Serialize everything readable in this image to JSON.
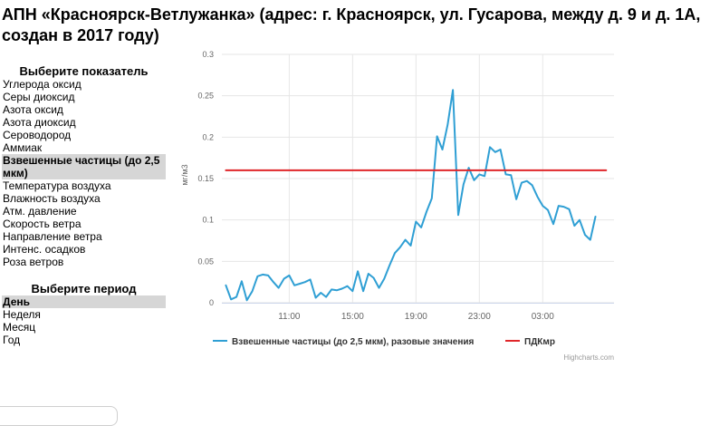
{
  "page": {
    "title": "АПН «Красноярск-Ветлужанка» (адрес: г. Красноярск, ул. Гусарова, между д. 9 и д. 1А, создан в 2017 году)"
  },
  "indicator_panel": {
    "heading": "Выберите показатель",
    "items": [
      "Углерода оксид",
      "Серы диоксид",
      "Азота оксид",
      "Азота диоксид",
      "Сероводород",
      "Аммиак",
      "Взвешенные частицы (до 2,5 мкм)",
      "Температура воздуха",
      "Влажность воздуха",
      "Атм. давление",
      "Скорость ветра",
      "Направление ветра",
      "Интенс. осадков",
      "Роза ветров"
    ],
    "selected_index": 6
  },
  "period_panel": {
    "heading": "Выберите период",
    "items": [
      "День",
      "Неделя",
      "Месяц",
      "Год"
    ],
    "selected_index": 0
  },
  "chart_data": {
    "type": "line",
    "ylabel": "мг/м3",
    "ylim": [
      0,
      0.3
    ],
    "yticks": [
      0,
      0.05,
      0.1,
      0.15,
      0.2,
      0.25,
      0.3
    ],
    "ytick_labels": [
      "0",
      "0.05",
      "0.1",
      "0.15",
      "0.2",
      "0.25",
      "0.3"
    ],
    "xlim": [
      6.75,
      31.5
    ],
    "xticks": [
      11,
      15,
      19,
      23,
      27
    ],
    "xtick_labels": [
      "11:00",
      "15:00",
      "19:00",
      "23:00",
      "03:00"
    ],
    "grid": true,
    "legend": "bottom",
    "series": [
      {
        "name": "Взвешенные частицы (до 2,5 мкм), разовые значения",
        "color": "#2f9fd4",
        "x": [
          7.0,
          7.33,
          7.67,
          8.0,
          8.33,
          8.67,
          9.0,
          9.33,
          9.67,
          10.0,
          10.33,
          10.67,
          11.0,
          11.33,
          11.67,
          12.0,
          12.33,
          12.67,
          13.0,
          13.33,
          13.67,
          14.0,
          14.33,
          14.67,
          15.0,
          15.33,
          15.67,
          16.0,
          16.33,
          16.67,
          17.0,
          17.33,
          17.67,
          18.0,
          18.33,
          18.67,
          19.0,
          19.33,
          19.67,
          20.0,
          20.33,
          20.67,
          21.0,
          21.33,
          21.67,
          22.0,
          22.33,
          22.67,
          23.0,
          23.33,
          23.67,
          24.0,
          24.33,
          24.67,
          25.0,
          25.33,
          25.67,
          26.0,
          26.33,
          26.67,
          27.0,
          27.33,
          27.67,
          28.0,
          28.33,
          28.67,
          29.0,
          29.33,
          29.67,
          30.0,
          30.33,
          30.67,
          31.0
        ],
        "values": [
          0.021,
          0.004,
          0.007,
          0.026,
          0.003,
          0.014,
          0.032,
          0.034,
          0.033,
          0.025,
          0.018,
          0.029,
          0.033,
          0.021,
          0.023,
          0.025,
          0.028,
          0.006,
          0.012,
          0.007,
          0.016,
          0.015,
          0.017,
          0.02,
          0.014,
          0.038,
          0.014,
          0.035,
          0.03,
          0.018,
          0.029,
          0.045,
          0.06,
          0.067,
          0.076,
          0.069,
          0.098,
          0.091,
          0.11,
          0.126,
          0.201,
          0.185,
          0.215,
          0.257,
          0.106,
          0.143,
          0.163,
          0.148,
          0.155,
          0.153,
          0.188,
          0.182,
          0.185,
          0.155,
          0.154,
          0.125,
          0.145,
          0.147,
          0.142,
          0.128,
          0.117,
          0.112,
          0.095,
          0.117,
          0.116,
          0.113,
          0.093,
          0.1,
          0.082,
          0.076,
          0.104,
          null,
          null
        ]
      },
      {
        "name": "ПДКмр",
        "color": "#e0262a",
        "x": [
          7.0,
          31.0
        ],
        "values": [
          0.16,
          0.16
        ]
      }
    ],
    "credits": "Highcharts.com"
  }
}
